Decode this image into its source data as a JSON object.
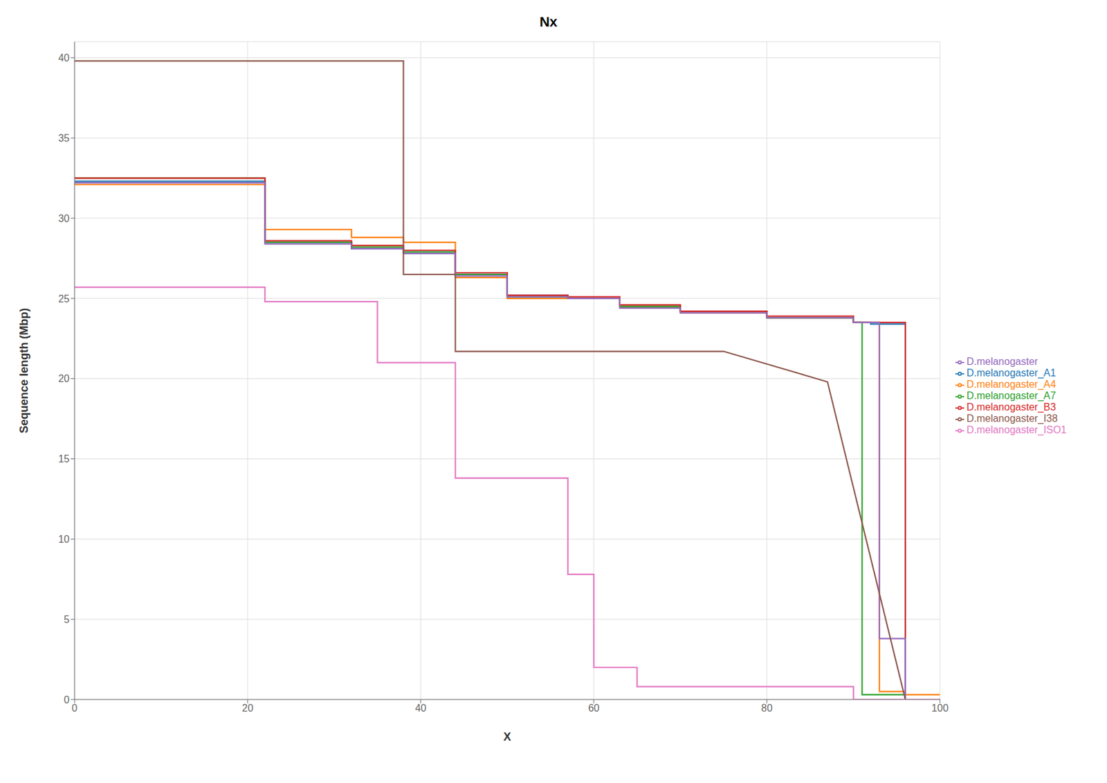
{
  "chart_data": {
    "type": "line",
    "title": "Nx",
    "xlabel": "X",
    "ylabel": "Sequence length (Mbp)",
    "xlim": [
      0,
      100
    ],
    "ylim": [
      0,
      41
    ],
    "xticks": [
      0,
      20,
      40,
      60,
      80,
      100
    ],
    "yticks": [
      0,
      5,
      10,
      15,
      20,
      25,
      30,
      35,
      40
    ],
    "grid": true,
    "legend": "right",
    "series": [
      {
        "name": "D.melanogaster_A1",
        "color": "#1f77b4",
        "x": [
          0,
          22,
          22,
          32,
          32,
          38,
          38,
          44,
          44,
          50,
          50,
          57,
          57,
          63,
          63,
          70,
          70,
          80,
          80,
          90,
          90,
          92,
          92,
          96,
          96,
          100
        ],
        "values": [
          32.3,
          32.3,
          28.5,
          28.5,
          28.1,
          28.1,
          27.8,
          27.8,
          26.5,
          26.5,
          25.2,
          25.2,
          25.0,
          25.0,
          24.5,
          24.5,
          24.2,
          24.2,
          23.8,
          23.8,
          23.5,
          23.5,
          23.4,
          23.4,
          0,
          0
        ]
      },
      {
        "name": "D.melanogaster_A4",
        "color": "#ff7f0e",
        "x": [
          0,
          22,
          22,
          32,
          32,
          38,
          38,
          44,
          44,
          50,
          50,
          57,
          57,
          63,
          63,
          70,
          70,
          80,
          80,
          90,
          90,
          93,
          93,
          96,
          96,
          100
        ],
        "values": [
          32.1,
          32.1,
          29.3,
          29.3,
          28.8,
          28.8,
          28.5,
          28.5,
          26.3,
          26.3,
          25.0,
          25.0,
          25.0,
          25.0,
          24.5,
          24.5,
          24.1,
          24.1,
          23.8,
          23.8,
          23.5,
          23.5,
          0.5,
          0.5,
          0.3,
          0.3
        ]
      },
      {
        "name": "D.melanogaster_A7",
        "color": "#2ca02c",
        "x": [
          0,
          22,
          22,
          32,
          32,
          38,
          38,
          44,
          44,
          50,
          50,
          57,
          57,
          63,
          63,
          70,
          70,
          80,
          80,
          90,
          90,
          91,
          91,
          96,
          96,
          100
        ],
        "values": [
          32.5,
          32.5,
          28.5,
          28.5,
          28.2,
          28.2,
          27.9,
          27.9,
          26.5,
          26.5,
          25.1,
          25.1,
          25.0,
          25.0,
          24.5,
          24.5,
          24.2,
          24.2,
          23.8,
          23.8,
          23.5,
          23.5,
          0.3,
          0.3,
          0,
          0
        ]
      },
      {
        "name": "D.melanogaster_B3",
        "color": "#d62728",
        "x": [
          0,
          22,
          22,
          32,
          32,
          38,
          38,
          44,
          44,
          50,
          50,
          57,
          57,
          63,
          63,
          70,
          70,
          80,
          80,
          90,
          90,
          96,
          96,
          100
        ],
        "values": [
          32.5,
          32.5,
          28.6,
          28.6,
          28.3,
          28.3,
          28.0,
          28.0,
          26.6,
          26.6,
          25.2,
          25.2,
          25.1,
          25.1,
          24.6,
          24.6,
          24.2,
          24.2,
          23.9,
          23.9,
          23.5,
          23.5,
          0,
          0
        ]
      },
      {
        "name": "D.melanogaster",
        "color": "#9467bd",
        "x": [
          0,
          22,
          22,
          32,
          32,
          38,
          38,
          44,
          44,
          50,
          50,
          57,
          57,
          63,
          63,
          70,
          70,
          80,
          80,
          90,
          90,
          93,
          93,
          96,
          96,
          100
        ],
        "values": [
          32.2,
          32.2,
          28.4,
          28.4,
          28.1,
          28.1,
          27.8,
          27.8,
          26.4,
          26.4,
          25.1,
          25.1,
          25.0,
          25.0,
          24.4,
          24.4,
          24.1,
          24.1,
          23.8,
          23.8,
          23.5,
          23.5,
          3.8,
          3.8,
          0,
          0
        ]
      },
      {
        "name": "D.melanogaster_I38",
        "color": "#8c564b",
        "x": [
          0,
          38,
          38,
          44,
          44,
          57,
          57,
          75,
          75,
          87,
          87,
          96,
          96,
          100
        ],
        "values": [
          39.8,
          39.8,
          26.5,
          26.5,
          21.7,
          21.7,
          21.7,
          21.7,
          21.7,
          19.8,
          19.8,
          0,
          0,
          0
        ]
      },
      {
        "name": "D.melanogaster_ISO1",
        "color": "#e377c2",
        "x": [
          0,
          22,
          22,
          35,
          35,
          44,
          44,
          57,
          57,
          60,
          60,
          65,
          65,
          90,
          90,
          100
        ],
        "values": [
          25.7,
          25.7,
          24.8,
          24.8,
          21.0,
          21.0,
          13.8,
          13.8,
          7.8,
          7.8,
          2.0,
          2.0,
          0.8,
          0.8,
          0,
          0
        ]
      }
    ]
  }
}
